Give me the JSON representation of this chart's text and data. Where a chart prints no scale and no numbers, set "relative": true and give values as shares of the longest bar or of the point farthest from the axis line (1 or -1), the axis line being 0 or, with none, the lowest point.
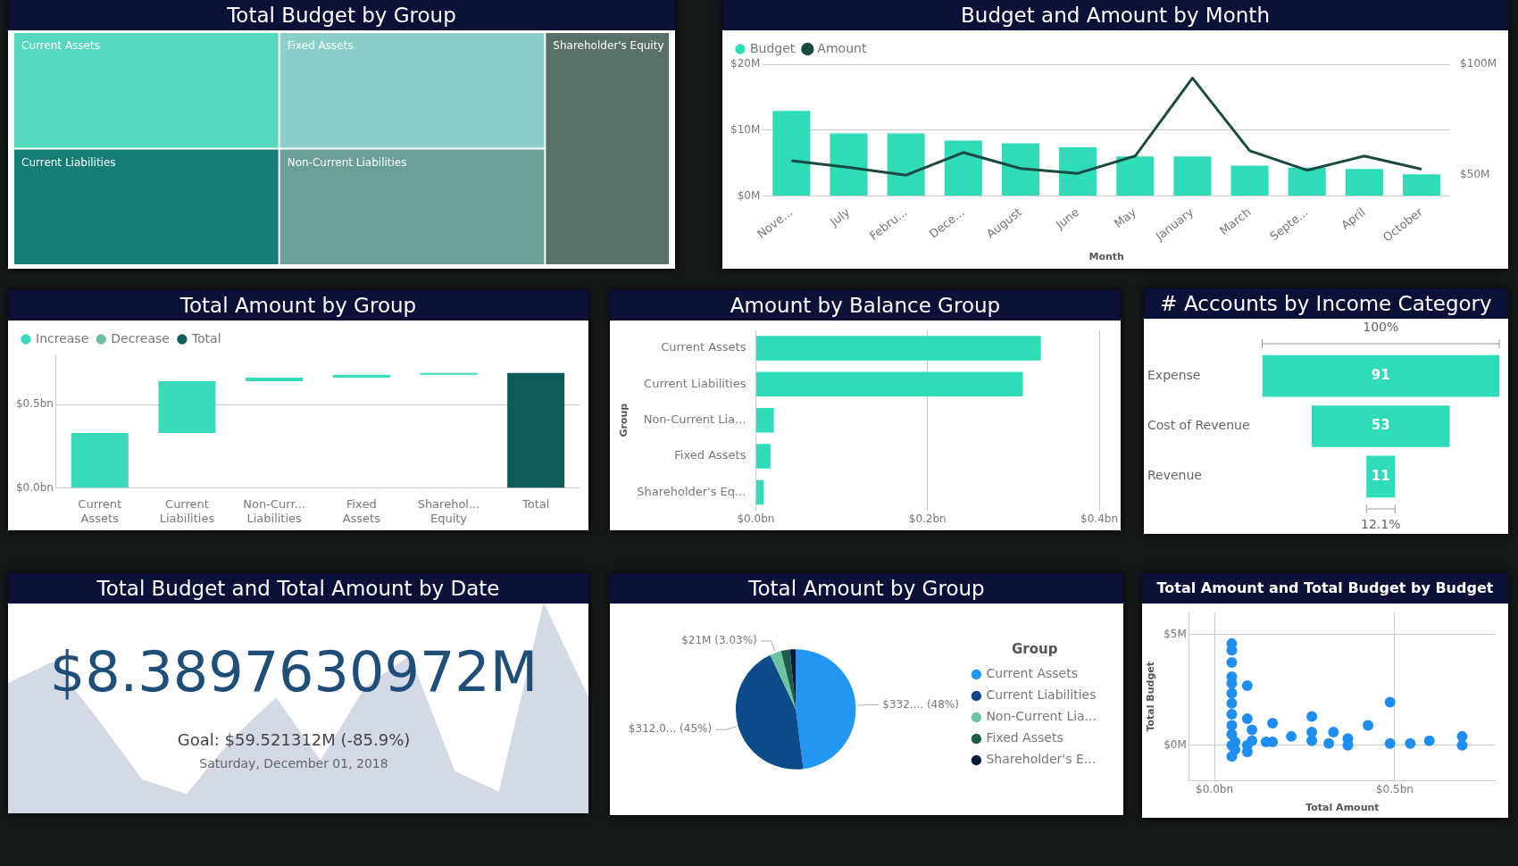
{
  "chart_data": [
    {
      "type": "other",
      "title": "Total Budget by Group",
      "categories": [
        "Current Assets",
        "Fixed Assets",
        "Shareholder's Equity",
        "Current Liabilities",
        "Non-Current Liabilities"
      ],
      "colors": [
        "#55d8be",
        "#8ad0c8",
        "#587068",
        "#137d76",
        "#6a9f97"
      ]
    },
    {
      "type": "bar",
      "title": "Budget and Amount by Month",
      "xlabel": "Month",
      "categories": [
        "Nove...",
        "July",
        "Febru...",
        "Dece...",
        "August",
        "June",
        "May",
        "January",
        "March",
        "Septe...",
        "April",
        "October"
      ],
      "series": [
        {
          "name": "Budget",
          "color": "#2fdcb8",
          "values": [
            12.9,
            9.5,
            9.5,
            8.4,
            8.0,
            7.4,
            6.0,
            6.0,
            4.6,
            4.3,
            4.1,
            3.3
          ]
        },
        {
          "name": "Amount",
          "type": "line",
          "axis": "y2",
          "color": "#1b4a43",
          "values": [
            56.5,
            53.5,
            50,
            60.2,
            53,
            50.8,
            58.6,
            93.8,
            61,
            52.2,
            58.6,
            52.7
          ]
        }
      ],
      "ylim": [
        0,
        20
      ],
      "yticks": [
        {
          "value": 0,
          "label": "$0M"
        },
        {
          "value": 10,
          "label": "$10M"
        },
        {
          "value": 20,
          "label": "$20M"
        }
      ],
      "y2lim": [
        40.6,
        100
      ],
      "y2ticks": [
        {
          "value": 50,
          "label": "$50M"
        },
        {
          "value": 100,
          "label": "$100M"
        }
      ],
      "grid": "y",
      "legend": "top left"
    },
    {
      "type": "bar",
      "title": "Total Amount by Group",
      "categories": [
        "Current Assets",
        "Current Liabilities",
        "Non-Curr... Liabilities",
        "Fixed Assets",
        "Sharehol... Equity",
        "Total"
      ],
      "series": [
        {
          "name": "Increase",
          "color": "#38dcbc",
          "base": [
            0,
            0.33,
            0.64,
            0.661,
            0.679,
            null
          ],
          "values": [
            0.33,
            0.31,
            0.021,
            0.018,
            0.01,
            null
          ]
        },
        {
          "name": "Decrease",
          "color": "#6fbfa6",
          "values": [
            null,
            null,
            null,
            null,
            null,
            null
          ]
        },
        {
          "name": "Total",
          "color": "#0d5c57",
          "base": [
            null,
            null,
            null,
            null,
            null,
            0
          ],
          "values": [
            null,
            null,
            null,
            null,
            null,
            0.689
          ]
        }
      ],
      "ylim": [
        0,
        0.8
      ],
      "yticks": [
        {
          "value": 0,
          "label": "$0.0bn"
        },
        {
          "value": 0.5,
          "label": "$0.5bn"
        }
      ],
      "grid": "y",
      "legend": "top left"
    },
    {
      "type": "bar",
      "orientation": "horizontal",
      "title": "Amount by Balance Group",
      "ylabel": "Group",
      "categories": [
        "Current Assets",
        "Current Liabilities",
        "Non-Current Lia...",
        "Fixed Assets",
        "Shareholder's Eq..."
      ],
      "values": [
        0.332,
        0.311,
        0.021,
        0.017,
        0.009
      ],
      "color": "#2fdcb8",
      "xlim": [
        0,
        0.4
      ],
      "xticks": [
        {
          "value": 0,
          "label": "$0.0bn"
        },
        {
          "value": 0.2,
          "label": "$0.2bn"
        },
        {
          "value": 0.4,
          "label": "$0.4bn"
        }
      ],
      "grid": "x"
    },
    {
      "type": "other",
      "title": "# Accounts by Income Category",
      "categories": [
        "Expense",
        "Cost of Revenue",
        "Revenue"
      ],
      "values": [
        91,
        53,
        11
      ],
      "color": "#2fdcb8",
      "data_labels": true,
      "annotations": [
        "100%",
        "12.1%"
      ]
    },
    {
      "type": "area",
      "relative": true,
      "title": "Total Budget and Total Amount by Date",
      "categories": [
        null,
        null,
        null,
        null,
        null,
        null,
        null,
        null,
        null,
        null,
        null,
        null,
        null,
        null
      ],
      "values": [
        0.62,
        0.72,
        0.45,
        0.16,
        0.09,
        0.35,
        0.55,
        0.25,
        0.6,
        0.75,
        0.2,
        0.1,
        1.0,
        0.55
      ],
      "color": "#d3dae6",
      "annotations": [
        "$8.3897630972M",
        "Goal: $59.521312M (-85.9%)",
        "Saturday, December 01, 2018"
      ]
    },
    {
      "type": "pie",
      "title": "Total Amount by Group",
      "categories": [
        "Current Assets",
        "Current Liabilities",
        "Non-Current Lia...",
        "Fixed Assets",
        "Shareholder's E..."
      ],
      "values": [
        48,
        45,
        3.03,
        2.4,
        1.57
      ],
      "colors": [
        "#2196f3",
        "#0d4a8a",
        "#6cc4a0",
        "#1f5c4a",
        "#0a1a3a"
      ],
      "legend": "right",
      "legend_title": "Group",
      "value_labels": [
        "$332.... (48%)",
        "$312.0... (45%)",
        "$21M (3.03%)",
        null,
        null
      ]
    },
    {
      "type": "scatter",
      "title": "Total Amount and Total Budget by Budget",
      "xlabel": "Total Amount",
      "ylabel": "Total Budget",
      "color": "#1e8ff0",
      "marker": "circle",
      "grid": true,
      "x": [
        0.048,
        0.048,
        0.048,
        0.048,
        0.048,
        0.048,
        0.048,
        0.048,
        0.048,
        0.048,
        0.048,
        0.048,
        0.057,
        0.057,
        0.091,
        0.091,
        0.091,
        0.091,
        0.104,
        0.104,
        0.143,
        0.161,
        0.161,
        0.213,
        0.27,
        0.27,
        0.27,
        0.317,
        0.33,
        0.37,
        0.37,
        0.426,
        0.487,
        0.487,
        0.543,
        0.596,
        0.687,
        0.687
      ],
      "values": [
        4.6,
        4.3,
        3.75,
        3.1,
        2.8,
        2.35,
        1.9,
        1.4,
        0.9,
        0.5,
        0,
        -0.5,
        0.15,
        -0.2,
        2.7,
        1.2,
        0,
        -0.3,
        0.7,
        0.2,
        0.15,
        1.0,
        0.15,
        0.4,
        1.3,
        0.6,
        0.2,
        0.08,
        0.6,
        0.3,
        0,
        0.9,
        1.95,
        0.08,
        0.08,
        0.2,
        0.4,
        0
      ],
      "xlim": [
        -0.07,
        0.78
      ],
      "xticks": [
        {
          "value": 0,
          "label": "$0.0bn"
        },
        {
          "value": 0.5,
          "label": "$0.5bn"
        }
      ],
      "ylim": [
        -1.6,
        6
      ],
      "yticks": [
        {
          "value": 0,
          "label": "$0M"
        },
        {
          "value": 5,
          "label": "$5M"
        }
      ]
    }
  ]
}
